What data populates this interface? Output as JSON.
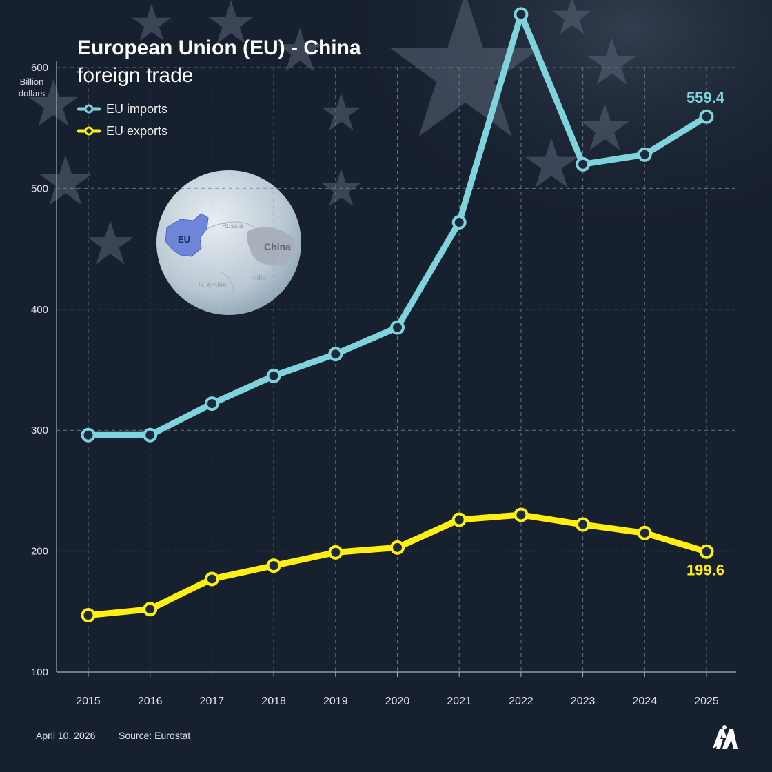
{
  "title_line1": "European Union (EU) - China",
  "title_line2": "foreign trade",
  "unit_line1": "Billion",
  "unit_line2": "dollars",
  "globe_labels": {
    "eu": "EU",
    "russia": "Russia",
    "china": "China",
    "india": "India",
    "saudi": "S. Arabia"
  },
  "footer": {
    "date": "April 10, 2026",
    "source": "Source: Eurostat"
  },
  "logo_name": "aa-logo-icon",
  "colors": {
    "background": "#17202f",
    "imports": "#7ed3dc",
    "exports": "#ffef12",
    "grid": "#7d8797",
    "axis": "#a9b1be",
    "marker_fill": "#1c2a3b"
  },
  "chart_data": {
    "type": "line",
    "title": "European Union (EU) - China foreign trade",
    "ylabel": "Billion dollars",
    "xlabel": "",
    "x": [
      "2015",
      "2016",
      "2017",
      "2018",
      "2019",
      "2020",
      "2021",
      "2022",
      "2023",
      "2024",
      "2025"
    ],
    "yticks": [
      100,
      200,
      300,
      400,
      500,
      600
    ],
    "ylim": [
      100,
      600
    ],
    "grid": true,
    "legend_position": "top-left",
    "series": [
      {
        "name": "EU imports",
        "color": "#7ed3dc",
        "values": [
          296,
          296,
          322,
          345,
          363,
          385,
          472,
          644,
          520,
          528,
          559.4
        ],
        "end_label": "559.4"
      },
      {
        "name": "EU exports",
        "color": "#ffef12",
        "values": [
          147,
          152,
          177,
          188,
          199,
          203,
          226,
          230,
          222,
          215,
          199.6
        ],
        "end_label": "199.6"
      }
    ]
  }
}
